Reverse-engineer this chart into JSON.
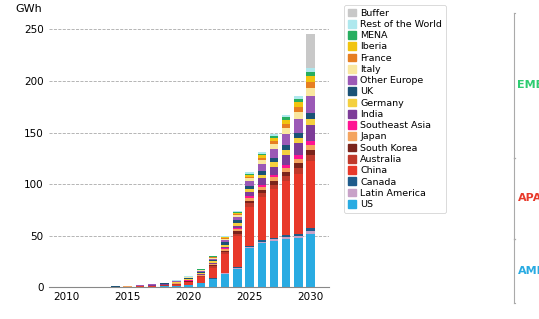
{
  "years": [
    2010,
    2011,
    2012,
    2013,
    2014,
    2015,
    2016,
    2017,
    2018,
    2019,
    2020,
    2021,
    2022,
    2023,
    2024,
    2025,
    2026,
    2027,
    2028,
    2029,
    2030
  ],
  "series": {
    "US": [
      0.1,
      0.1,
      0.1,
      0.2,
      0.2,
      0.3,
      0.4,
      0.5,
      0.8,
      1.0,
      2.0,
      4.0,
      8.0,
      13.0,
      18.0,
      38.0,
      43.0,
      45.0,
      47.0,
      48.0,
      52.0
    ],
    "Latin America": [
      0.0,
      0.0,
      0.0,
      0.0,
      0.0,
      0.0,
      0.0,
      0.0,
      0.0,
      0.05,
      0.1,
      0.2,
      0.3,
      0.5,
      0.7,
      1.0,
      1.2,
      1.5,
      1.8,
      2.0,
      2.5
    ],
    "Canada": [
      0.0,
      0.0,
      0.0,
      0.0,
      0.0,
      0.0,
      0.0,
      0.0,
      0.0,
      0.05,
      0.1,
      0.2,
      0.3,
      0.5,
      0.8,
      1.0,
      1.2,
      1.5,
      1.8,
      2.0,
      2.5
    ],
    "China": [
      0.0,
      0.0,
      0.0,
      0.0,
      0.1,
      0.1,
      0.2,
      0.3,
      0.5,
      1.0,
      2.5,
      5.0,
      10.0,
      18.0,
      30.0,
      38.0,
      42.0,
      47.0,
      52.0,
      58.0,
      65.0
    ],
    "Australia": [
      0.0,
      0.0,
      0.0,
      0.0,
      0.0,
      0.0,
      0.1,
      0.2,
      0.3,
      0.5,
      0.7,
      1.0,
      1.5,
      2.0,
      2.5,
      3.5,
      4.0,
      4.5,
      5.0,
      5.5,
      6.0
    ],
    "South Korea": [
      0.0,
      0.0,
      0.0,
      0.0,
      0.1,
      0.1,
      0.2,
      0.3,
      0.5,
      0.5,
      0.5,
      0.8,
      1.0,
      1.5,
      2.0,
      2.5,
      3.0,
      3.5,
      4.0,
      4.5,
      5.0
    ],
    "Japan": [
      0.0,
      0.0,
      0.0,
      0.0,
      0.0,
      0.1,
      0.1,
      0.2,
      0.3,
      0.4,
      0.5,
      0.7,
      1.0,
      1.5,
      2.0,
      2.5,
      3.0,
      3.5,
      4.0,
      4.5,
      5.0
    ],
    "Southeast Asia": [
      0.0,
      0.0,
      0.0,
      0.0,
      0.0,
      0.0,
      0.0,
      0.0,
      0.1,
      0.1,
      0.2,
      0.3,
      0.5,
      0.8,
      1.2,
      1.5,
      2.0,
      2.5,
      3.0,
      3.5,
      4.0
    ],
    "India": [
      0.0,
      0.0,
      0.0,
      0.0,
      0.0,
      0.0,
      0.0,
      0.1,
      0.1,
      0.2,
      0.3,
      0.5,
      0.8,
      1.5,
      2.5,
      4.0,
      6.0,
      8.0,
      10.0,
      12.0,
      15.0
    ],
    "Germany": [
      0.0,
      0.0,
      0.0,
      0.1,
      0.1,
      0.2,
      0.2,
      0.3,
      0.5,
      0.7,
      0.8,
      1.0,
      1.5,
      2.0,
      2.5,
      3.0,
      3.5,
      4.0,
      4.5,
      5.0,
      6.0
    ],
    "UK": [
      0.0,
      0.0,
      0.0,
      0.0,
      0.1,
      0.2,
      0.3,
      0.5,
      0.6,
      0.8,
      1.0,
      1.2,
      1.5,
      2.0,
      2.5,
      3.0,
      3.5,
      4.0,
      4.5,
      5.0,
      6.0
    ],
    "Other Europe": [
      0.0,
      0.0,
      0.0,
      0.0,
      0.0,
      0.1,
      0.1,
      0.2,
      0.3,
      0.4,
      0.5,
      0.8,
      1.2,
      2.0,
      3.0,
      5.0,
      7.0,
      9.0,
      11.0,
      13.0,
      16.0
    ],
    "Italy": [
      0.0,
      0.0,
      0.0,
      0.0,
      0.0,
      0.0,
      0.1,
      0.1,
      0.2,
      0.3,
      0.4,
      0.6,
      0.8,
      1.2,
      1.8,
      2.5,
      3.5,
      4.5,
      5.5,
      6.5,
      8.0
    ],
    "France": [
      0.0,
      0.0,
      0.0,
      0.0,
      0.0,
      0.0,
      0.0,
      0.1,
      0.1,
      0.2,
      0.3,
      0.4,
      0.6,
      0.9,
      1.3,
      1.8,
      2.5,
      3.2,
      4.0,
      5.0,
      6.0
    ],
    "Iberia": [
      0.0,
      0.0,
      0.0,
      0.0,
      0.0,
      0.0,
      0.0,
      0.0,
      0.1,
      0.1,
      0.2,
      0.3,
      0.5,
      0.8,
      1.2,
      1.8,
      2.5,
      3.0,
      4.0,
      5.0,
      6.0
    ],
    "MENA": [
      0.0,
      0.0,
      0.0,
      0.0,
      0.0,
      0.0,
      0.0,
      0.0,
      0.0,
      0.1,
      0.1,
      0.2,
      0.3,
      0.5,
      0.7,
      1.0,
      1.5,
      2.0,
      2.5,
      3.0,
      3.5
    ],
    "Rest of the World": [
      0.0,
      0.0,
      0.0,
      0.0,
      0.0,
      0.0,
      0.0,
      0.0,
      0.0,
      0.1,
      0.1,
      0.2,
      0.3,
      0.5,
      0.8,
      1.2,
      1.5,
      2.0,
      2.5,
      3.0,
      4.0
    ],
    "Buffer": [
      0.0,
      0.0,
      0.0,
      0.0,
      0.0,
      0.0,
      0.0,
      0.0,
      0.0,
      0.0,
      0.0,
      0.0,
      0.0,
      0.0,
      0.0,
      0.0,
      0.0,
      0.0,
      0.0,
      0.0,
      33.0
    ]
  },
  "colors": {
    "US": "#29ABE2",
    "Latin America": "#C8A2C8",
    "Canada": "#1F5C8B",
    "China": "#E8392A",
    "Australia": "#C0392B",
    "South Korea": "#7B241C",
    "Japan": "#F4A460",
    "Southeast Asia": "#FF1493",
    "India": "#7D3C98",
    "Germany": "#F4D03F",
    "UK": "#1A5276",
    "Other Europe": "#9B59B6",
    "Italy": "#F9E79F",
    "France": "#E67E22",
    "Iberia": "#F1C40F",
    "MENA": "#27AE60",
    "Rest of the World": "#AEE8EE",
    "Buffer": "#C8C8C8"
  },
  "legend_order": [
    "Buffer",
    "Rest of the World",
    "MENA",
    "Iberia",
    "France",
    "Italy",
    "Other Europe",
    "UK",
    "Germany",
    "India",
    "Southeast Asia",
    "Japan",
    "South Korea",
    "Australia",
    "China",
    "Canada",
    "Latin America",
    "US"
  ],
  "stack_order": [
    "US",
    "Latin America",
    "Canada",
    "China",
    "Australia",
    "South Korea",
    "Japan",
    "Southeast Asia",
    "India",
    "Germany",
    "UK",
    "Other Europe",
    "Italy",
    "France",
    "Iberia",
    "MENA",
    "Rest of the World",
    "Buffer"
  ],
  "ylim": [
    0,
    260
  ],
  "yticks": [
    0,
    50,
    100,
    150,
    200,
    250
  ],
  "ylabel": "GWh",
  "xticks": [
    2010,
    2015,
    2020,
    2025,
    2030
  ],
  "xlim": [
    2008.5,
    2031.5
  ]
}
